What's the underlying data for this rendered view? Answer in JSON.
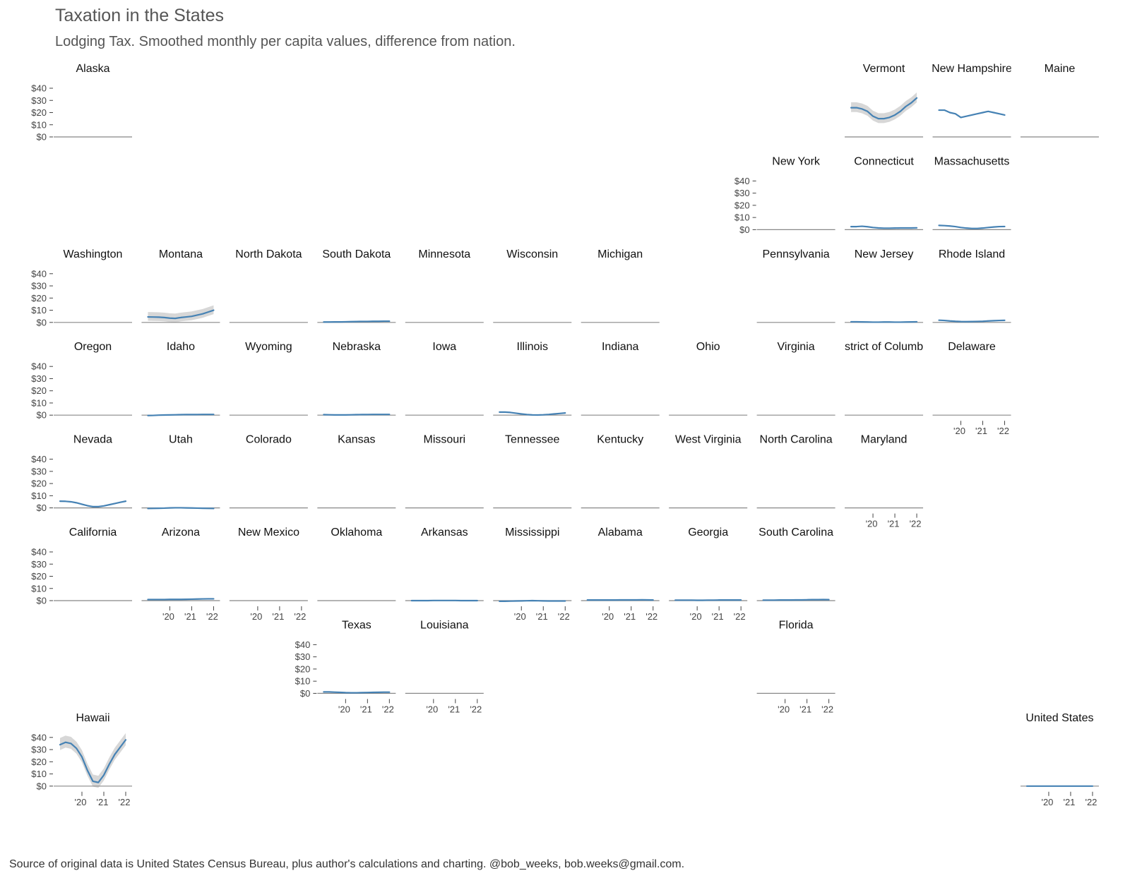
{
  "title": "Taxation in the States",
  "subtitle": "Lodging Tax. Smoothed monthly per capita values, difference from nation.",
  "caption": "Source of original data is United States Census Bureau, plus author's calculations and charting. @bob_weeks, bob.weeks@gmail.com.",
  "colors": {
    "line": "#4682b4",
    "band": "#d3d3d3",
    "zero": "#888888",
    "axis": "#444444"
  },
  "chart_data": {
    "type": "line",
    "layout": "small-multiples-state-grid",
    "x_range": [
      2019.0,
      2022.0
    ],
    "ylim": [
      0,
      40
    ],
    "y_ticks": [
      {
        "value": 40,
        "label": "$40"
      },
      {
        "value": 30,
        "label": "$30"
      },
      {
        "value": 20,
        "label": "$20"
      },
      {
        "value": 10,
        "label": "$10"
      },
      {
        "value": 0,
        "label": "$0"
      }
    ],
    "x_ticks": [
      {
        "value": 2020,
        "label": "'20"
      },
      {
        "value": 2021,
        "label": "'21"
      },
      {
        "value": 2022,
        "label": "'22"
      }
    ],
    "x": [
      2019.0,
      2019.25,
      2019.5,
      2019.75,
      2020.0,
      2020.25,
      2020.5,
      2020.75,
      2021.0,
      2021.25,
      2021.5,
      2021.75,
      2022.0
    ],
    "panels": [
      {
        "name": "Alaska",
        "row": 0,
        "col": 0,
        "y_axis": true,
        "x_axis": false,
        "values": null
      },
      {
        "name": "Vermont",
        "row": 0,
        "col": 9,
        "y_axis": false,
        "x_axis": false,
        "band": 4.5,
        "values": [
          24,
          24,
          23,
          21,
          17,
          15,
          15,
          16,
          18,
          21,
          25,
          28,
          32
        ]
      },
      {
        "name": "New Hampshire",
        "row": 0,
        "col": 10,
        "y_axis": false,
        "x_axis": false,
        "values": [
          22,
          22,
          20,
          19,
          16,
          17,
          18,
          19,
          20,
          21,
          20,
          19,
          18
        ]
      },
      {
        "name": "Maine",
        "row": 0,
        "col": 11,
        "y_axis": false,
        "x_axis": false,
        "values": null
      },
      {
        "name": "New York",
        "row": 1,
        "col": 8,
        "y_axis": true,
        "x_axis": false,
        "values": null
      },
      {
        "name": "Connecticut",
        "row": 1,
        "col": 9,
        "y_axis": false,
        "x_axis": false,
        "values": [
          2.5,
          2.5,
          2.8,
          2.4,
          1.8,
          1.4,
          1.2,
          1.2,
          1.3,
          1.4,
          1.4,
          1.4,
          1.5
        ]
      },
      {
        "name": "Massachusetts",
        "row": 1,
        "col": 10,
        "y_axis": false,
        "x_axis": false,
        "values": [
          3.5,
          3.3,
          3.0,
          2.5,
          1.8,
          1.3,
          1.0,
          1.0,
          1.3,
          1.8,
          2.2,
          2.5,
          2.6
        ]
      },
      {
        "name": "Washington",
        "row": 2,
        "col": 0,
        "y_axis": true,
        "x_axis": false,
        "values": null
      },
      {
        "name": "Montana",
        "row": 2,
        "col": 1,
        "y_axis": false,
        "x_axis": false,
        "band": 4,
        "values": [
          4.5,
          4.4,
          4.3,
          4.0,
          3.5,
          3.3,
          4.0,
          4.5,
          5.0,
          6.0,
          7.0,
          8.5,
          10
        ]
      },
      {
        "name": "North Dakota",
        "row": 2,
        "col": 2,
        "y_axis": false,
        "x_axis": false,
        "values": null
      },
      {
        "name": "South Dakota",
        "row": 2,
        "col": 3,
        "y_axis": false,
        "x_axis": false,
        "values": [
          0.3,
          0.3,
          0.4,
          0.4,
          0.5,
          0.6,
          0.7,
          0.8,
          0.8,
          0.9,
          0.9,
          1.0,
          1.0
        ]
      },
      {
        "name": "Minnesota",
        "row": 2,
        "col": 4,
        "y_axis": false,
        "x_axis": false,
        "values": null
      },
      {
        "name": "Wisconsin",
        "row": 2,
        "col": 5,
        "y_axis": false,
        "x_axis": false,
        "values": null
      },
      {
        "name": "Michigan",
        "row": 2,
        "col": 6,
        "y_axis": false,
        "x_axis": false,
        "values": null
      },
      {
        "name": "Pennsylvania",
        "row": 2,
        "col": 8,
        "y_axis": false,
        "x_axis": false,
        "values": null
      },
      {
        "name": "New Jersey",
        "row": 2,
        "col": 9,
        "y_axis": false,
        "x_axis": false,
        "values": [
          0.5,
          0.5,
          0.4,
          0.3,
          0.2,
          0.2,
          0.3,
          0.3,
          0.2,
          0.2,
          0.3,
          0.4,
          0.5
        ]
      },
      {
        "name": "Rhode Island",
        "row": 2,
        "col": 10,
        "y_axis": false,
        "x_axis": false,
        "values": [
          1.8,
          1.6,
          1.2,
          0.9,
          0.7,
          0.6,
          0.7,
          0.8,
          0.9,
          1.2,
          1.4,
          1.6,
          1.7
        ]
      },
      {
        "name": "Oregon",
        "row": 3,
        "col": 0,
        "y_axis": true,
        "x_axis": false,
        "values": null
      },
      {
        "name": "Idaho",
        "row": 3,
        "col": 1,
        "y_axis": false,
        "x_axis": false,
        "values": [
          -0.3,
          -0.2,
          0,
          0.1,
          0.2,
          0.3,
          0.4,
          0.5,
          0.5,
          0.5,
          0.6,
          0.6,
          0.6
        ]
      },
      {
        "name": "Wyoming",
        "row": 3,
        "col": 2,
        "y_axis": false,
        "x_axis": false,
        "values": null
      },
      {
        "name": "Nebraska",
        "row": 3,
        "col": 3,
        "y_axis": false,
        "x_axis": false,
        "values": [
          0.4,
          0.3,
          0.2,
          0.2,
          0.2,
          0.3,
          0.4,
          0.5,
          0.5,
          0.6,
          0.6,
          0.6,
          0.6
        ]
      },
      {
        "name": "Iowa",
        "row": 3,
        "col": 4,
        "y_axis": false,
        "x_axis": false,
        "values": null
      },
      {
        "name": "Illinois",
        "row": 3,
        "col": 5,
        "y_axis": false,
        "x_axis": false,
        "values": [
          2.5,
          2.5,
          2.2,
          1.6,
          1.0,
          0.5,
          0.2,
          0.1,
          0.3,
          0.6,
          1.0,
          1.4,
          1.8
        ]
      },
      {
        "name": "Indiana",
        "row": 3,
        "col": 6,
        "y_axis": false,
        "x_axis": false,
        "values": null
      },
      {
        "name": "Ohio",
        "row": 3,
        "col": 7,
        "y_axis": false,
        "x_axis": false,
        "values": null
      },
      {
        "name": "Virginia",
        "row": 3,
        "col": 8,
        "y_axis": false,
        "x_axis": false,
        "values": null
      },
      {
        "name": "strict of Columb",
        "row": 3,
        "col": 9,
        "y_axis": false,
        "x_axis": false,
        "values": null
      },
      {
        "name": "Delaware",
        "row": 3,
        "col": 10,
        "y_axis": false,
        "x_axis": true,
        "values": null
      },
      {
        "name": "Nevada",
        "row": 4,
        "col": 0,
        "y_axis": true,
        "x_axis": false,
        "values": [
          5.5,
          5.4,
          5.0,
          4.2,
          3.0,
          1.8,
          1.0,
          1.0,
          1.6,
          2.6,
          3.6,
          4.6,
          5.5
        ]
      },
      {
        "name": "Utah",
        "row": 4,
        "col": 1,
        "y_axis": false,
        "x_axis": false,
        "values": [
          -0.5,
          -0.4,
          -0.3,
          -0.2,
          0,
          0.1,
          0.1,
          0,
          -0.1,
          -0.2,
          -0.3,
          -0.4,
          -0.5
        ]
      },
      {
        "name": "Colorado",
        "row": 4,
        "col": 2,
        "y_axis": false,
        "x_axis": false,
        "values": null
      },
      {
        "name": "Kansas",
        "row": 4,
        "col": 3,
        "y_axis": false,
        "x_axis": false,
        "values": null
      },
      {
        "name": "Missouri",
        "row": 4,
        "col": 4,
        "y_axis": false,
        "x_axis": false,
        "values": null
      },
      {
        "name": "Tennessee",
        "row": 4,
        "col": 5,
        "y_axis": false,
        "x_axis": false,
        "values": null
      },
      {
        "name": "Kentucky",
        "row": 4,
        "col": 6,
        "y_axis": false,
        "x_axis": false,
        "values": null
      },
      {
        "name": "West Virginia",
        "row": 4,
        "col": 7,
        "y_axis": false,
        "x_axis": false,
        "values": null
      },
      {
        "name": "North Carolina",
        "row": 4,
        "col": 8,
        "y_axis": false,
        "x_axis": false,
        "values": null
      },
      {
        "name": "Maryland",
        "row": 4,
        "col": 9,
        "y_axis": false,
        "x_axis": true,
        "values": null
      },
      {
        "name": "California",
        "row": 5,
        "col": 0,
        "y_axis": true,
        "x_axis": false,
        "values": null
      },
      {
        "name": "Arizona",
        "row": 5,
        "col": 1,
        "y_axis": false,
        "x_axis": true,
        "values": [
          0.9,
          0.9,
          0.9,
          0.9,
          1.0,
          1.0,
          1.0,
          1.1,
          1.2,
          1.3,
          1.4,
          1.5,
          1.5
        ]
      },
      {
        "name": "New Mexico",
        "row": 5,
        "col": 2,
        "y_axis": false,
        "x_axis": true,
        "values": null
      },
      {
        "name": "Oklahoma",
        "row": 5,
        "col": 3,
        "y_axis": false,
        "x_axis": false,
        "values": null
      },
      {
        "name": "Arkansas",
        "row": 5,
        "col": 4,
        "y_axis": false,
        "x_axis": false,
        "values": [
          0,
          0,
          0,
          0,
          0.1,
          0.1,
          0.1,
          0.1,
          0.1,
          0,
          0,
          0,
          0
        ]
      },
      {
        "name": "Mississippi",
        "row": 5,
        "col": 5,
        "y_axis": false,
        "x_axis": true,
        "values": [
          -0.5,
          -0.5,
          -0.4,
          -0.3,
          -0.2,
          -0.1,
          0,
          -0.1,
          -0.2,
          -0.3,
          -0.3,
          -0.3,
          -0.3
        ]
      },
      {
        "name": "Alabama",
        "row": 5,
        "col": 6,
        "y_axis": false,
        "x_axis": true,
        "values": [
          0.5,
          0.5,
          0.5,
          0.5,
          0.5,
          0.5,
          0.6,
          0.6,
          0.6,
          0.6,
          0.7,
          0.6,
          0.5
        ]
      },
      {
        "name": "Georgia",
        "row": 5,
        "col": 7,
        "y_axis": false,
        "x_axis": true,
        "values": [
          0.4,
          0.4,
          0.4,
          0.4,
          0.3,
          0.3,
          0.4,
          0.4,
          0.5,
          0.5,
          0.5,
          0.5,
          0.5
        ]
      },
      {
        "name": "South Carolina",
        "row": 5,
        "col": 8,
        "y_axis": false,
        "x_axis": false,
        "values": [
          0.4,
          0.4,
          0.4,
          0.5,
          0.5,
          0.5,
          0.6,
          0.6,
          0.7,
          0.8,
          0.8,
          0.9,
          0.8
        ]
      },
      {
        "name": "Texas",
        "row": 6,
        "col": 3,
        "y_axis": true,
        "x_axis": true,
        "values": [
          1.2,
          1.2,
          1.0,
          0.8,
          0.6,
          0.5,
          0.5,
          0.6,
          0.7,
          0.8,
          0.9,
          1.0,
          1.0
        ]
      },
      {
        "name": "Louisiana",
        "row": 6,
        "col": 4,
        "y_axis": false,
        "x_axis": true,
        "values": null
      },
      {
        "name": "Florida",
        "row": 6,
        "col": 8,
        "y_axis": false,
        "x_axis": true,
        "values": null
      },
      {
        "name": "Hawaii",
        "row": 7,
        "col": 0,
        "y_axis": true,
        "x_axis": true,
        "band": 5.5,
        "values": [
          34,
          36,
          35,
          31,
          24,
          13,
          4,
          3,
          9,
          18,
          26,
          32,
          38
        ]
      },
      {
        "name": "United States",
        "row": 7,
        "col": 11,
        "y_axis": false,
        "x_axis": true,
        "values": [
          0,
          0,
          0,
          0,
          0,
          0,
          0,
          0,
          0,
          0,
          0,
          0,
          0
        ]
      }
    ]
  }
}
